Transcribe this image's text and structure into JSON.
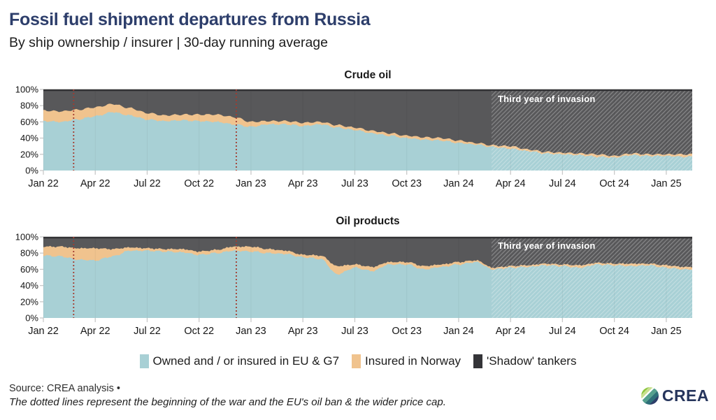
{
  "header": {
    "title": "Fossil fuel shipment departures from Russia",
    "subtitle": "By ship ownership / insurer | 30-day running average"
  },
  "legend": {
    "items": [
      {
        "label": "Owned and / or insured in EU & G7",
        "color": "#a8d0d5"
      },
      {
        "label": "Insured in Norway",
        "color": "#f0c38e"
      },
      {
        "label": "'Shadow' tankers",
        "color": "#343438"
      }
    ]
  },
  "footer": {
    "source": "Source: CREA analysis •",
    "note": "The dotted lines represent the beginning of the war and the EU's oil ban & the wider price cap."
  },
  "logo": {
    "text": "CREA"
  },
  "colors": {
    "eu_g7_area": "#a8d0d5",
    "norway_area": "#f0c38e",
    "shadow_area": "#58585a",
    "plot_top_border": "#323235",
    "dotted_line": "#a33b2f",
    "tick": "#c9c9c9",
    "axis_text": "#161616",
    "hatch_line": "rgba(255,255,255,0.27)"
  },
  "chart_data": [
    {
      "type": "area",
      "title": "Crude oil",
      "stacked_percent": true,
      "ylim": [
        0,
        100
      ],
      "y_ticks": [
        "0%",
        "20%",
        "40%",
        "60%",
        "80%",
        "100%"
      ],
      "x_ticks": [
        "Jan 22",
        "Apr 22",
        "Jul 22",
        "Oct 22",
        "Jan 23",
        "Apr 23",
        "Jul 23",
        "Oct 23",
        "Jan 24",
        "Apr 24",
        "Jul 24",
        "Oct 24",
        "Jan 25"
      ],
      "categories": [
        "Jan 22",
        "Feb 22",
        "Mar 22",
        "Apr 22",
        "May 22",
        "Jun 22",
        "Jul 22",
        "Aug 22",
        "Sep 22",
        "Oct 22",
        "Nov 22",
        "Dec 22",
        "Jan 23",
        "Feb 23",
        "Mar 23",
        "Apr 23",
        "May 23",
        "Jun 23",
        "Jul 23",
        "Aug 23",
        "Sep 23",
        "Oct 23",
        "Nov 23",
        "Dec 23",
        "Jan 24",
        "Feb 24",
        "Mar 24",
        "Apr 24",
        "May 24",
        "Jun 24",
        "Jul 24",
        "Aug 24",
        "Sep 24",
        "Oct 24",
        "Nov 24",
        "Dec 24",
        "Jan 25",
        "Feb 25"
      ],
      "series": [
        {
          "name": "Owned and / or insured in EU & G7",
          "color": "#a8d0d5",
          "values": [
            61,
            60,
            63,
            67,
            72,
            68,
            63,
            61,
            62,
            61,
            60,
            57,
            54,
            57,
            57,
            55,
            57,
            53,
            50,
            46,
            43,
            40,
            38,
            37,
            34,
            32,
            29,
            27,
            24,
            21,
            20,
            19,
            17,
            16,
            19,
            18,
            18,
            17
          ]
        },
        {
          "name": "Insured in Norway",
          "color": "#f0c38e",
          "values": [
            13,
            13,
            12,
            11,
            10,
            9,
            8,
            7,
            7,
            8,
            9,
            9,
            6,
            4,
            4,
            4,
            3,
            3,
            3,
            3,
            3,
            3,
            3,
            3,
            3,
            2,
            2,
            3,
            2,
            2,
            2,
            2,
            3,
            2,
            2,
            2,
            2,
            3
          ]
        },
        {
          "name": "'Shadow' tankers",
          "color": "#58585a",
          "values": [
            26,
            27,
            25,
            22,
            18,
            23,
            29,
            32,
            31,
            31,
            31,
            34,
            40,
            39,
            39,
            41,
            40,
            44,
            47,
            51,
            54,
            57,
            59,
            60,
            63,
            66,
            69,
            70,
            74,
            77,
            78,
            79,
            80,
            82,
            79,
            80,
            80,
            80
          ]
        }
      ],
      "annotations": {
        "region_label": "Third year of invasion",
        "region_start_month": 25.9,
        "dotted_lines_months": [
          1.75,
          11.15
        ]
      }
    },
    {
      "type": "area",
      "title": "Oil products",
      "stacked_percent": true,
      "ylim": [
        0,
        100
      ],
      "y_ticks": [
        "0%",
        "20%",
        "40%",
        "60%",
        "80%",
        "100%"
      ],
      "x_ticks": [
        "Jan 22",
        "Apr 22",
        "Jul 22",
        "Oct 22",
        "Jan 23",
        "Apr 23",
        "Jul 23",
        "Oct 23",
        "Jan 24",
        "Apr 24",
        "Jul 24",
        "Oct 24",
        "Jan 25"
      ],
      "categories": [
        "Jan 22",
        "Feb 22",
        "Mar 22",
        "Apr 22",
        "May 22",
        "Jun 22",
        "Jul 22",
        "Aug 22",
        "Sep 22",
        "Oct 22",
        "Nov 22",
        "Dec 22",
        "Jan 23",
        "Feb 23",
        "Mar 23",
        "Apr 23",
        "May 23",
        "Jun 23",
        "Jul 23",
        "Aug 23",
        "Sep 23",
        "Oct 23",
        "Nov 23",
        "Dec 23",
        "Jan 24",
        "Feb 24",
        "Mar 24",
        "Apr 24",
        "May 24",
        "Jun 24",
        "Jul 24",
        "Aug 24",
        "Sep 24",
        "Oct 24",
        "Nov 24",
        "Dec 24",
        "Jan 25",
        "Feb 25"
      ],
      "series": [
        {
          "name": "Owned and / or insured in EU & G7",
          "color": "#a8d0d5",
          "values": [
            77,
            76,
            72,
            71,
            76,
            83,
            83,
            82,
            81,
            78,
            80,
            83,
            82,
            80,
            79,
            75,
            73,
            54,
            62,
            58,
            66,
            66,
            60,
            63,
            66,
            69,
            60,
            62,
            63,
            65,
            64,
            62,
            66,
            65,
            64,
            65,
            62,
            60
          ]
        },
        {
          "name": "Insured in Norway",
          "color": "#f0c38e",
          "values": [
            11,
            12,
            14,
            15,
            9,
            4,
            3,
            3,
            4,
            4,
            4,
            5,
            6,
            5,
            4,
            3,
            4,
            10,
            4,
            5,
            3,
            3,
            4,
            3,
            3,
            2,
            2,
            2,
            2,
            2,
            2,
            3,
            2,
            2,
            3,
            2,
            3,
            3
          ]
        },
        {
          "name": "'Shadow' tankers",
          "color": "#58585a",
          "values": [
            12,
            12,
            14,
            14,
            15,
            13,
            14,
            15,
            15,
            18,
            16,
            12,
            12,
            15,
            17,
            22,
            23,
            36,
            34,
            37,
            31,
            31,
            36,
            34,
            31,
            29,
            38,
            36,
            35,
            33,
            34,
            35,
            32,
            33,
            33,
            33,
            35,
            37
          ]
        }
      ],
      "annotations": {
        "region_label": "Third year of invasion",
        "region_start_month": 25.9,
        "dotted_lines_months": [
          1.75,
          11.15
        ]
      }
    }
  ]
}
